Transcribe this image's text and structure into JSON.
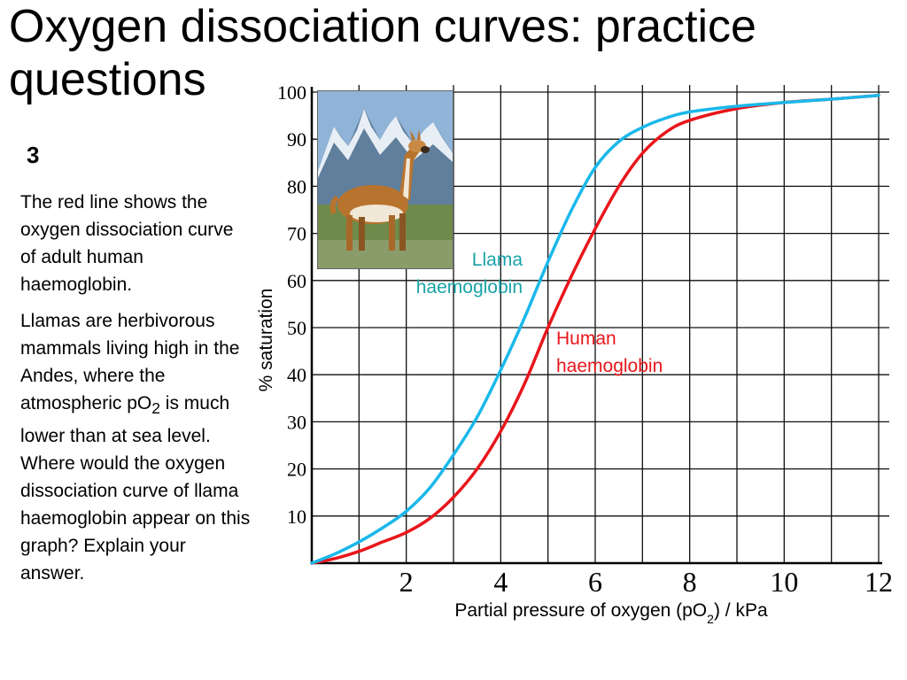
{
  "slide": {
    "title": "Oxygen dissociation curves: practice questions",
    "question_number": "3",
    "paragraph1": "The red line shows the oxygen dissociation curve of adult human haemoglobin.",
    "paragraph2_before": "Llamas are herbivorous mammals living high in the Andes, where the atmospheric pO",
    "paragraph2_sub": "2",
    "paragraph2_after": " is much lower than at sea level. Where would the oxygen dissociation curve of llama haemoglobin appear on this graph? Explain your answer."
  },
  "photo": {
    "subject": "llama standing in front of snowy mountains",
    "colors": {
      "sky": "#8fb4d8",
      "mountain": "#5f7f9c",
      "snow": "#e8eef5",
      "grass": "#6f8a4a",
      "fur": "#b8742e",
      "belly": "#f1e7d6"
    }
  },
  "chart_data": {
    "type": "line",
    "title": "",
    "xlabel_main": "Partial pressure of oxygen (pO",
    "xlabel_sub": "2",
    "xlabel_end": ") / kPa",
    "ylabel": "% saturation",
    "xlim": [
      0,
      12
    ],
    "ylim": [
      0,
      100
    ],
    "x_ticks": [
      2,
      4,
      6,
      8,
      10,
      12
    ],
    "y_ticks": [
      10,
      20,
      30,
      40,
      50,
      60,
      70,
      80,
      90,
      100
    ],
    "grid": true,
    "series": [
      {
        "name": "Llama haemoglobin",
        "label_line1": "Llama",
        "label_line2": "haemoglobin",
        "color": "#1ab8ea",
        "x": [
          0,
          0.5,
          1,
          1.5,
          2,
          2.5,
          3,
          3.5,
          4,
          4.5,
          5,
          5.5,
          6,
          6.5,
          7,
          7.5,
          8,
          9,
          10,
          11,
          12
        ],
        "y": [
          0,
          2,
          4.5,
          7.5,
          11,
          16,
          23,
          31,
          41,
          52,
          64,
          75,
          84,
          89.5,
          92.5,
          94.5,
          95.8,
          97,
          97.8,
          98.5,
          99.3
        ]
      },
      {
        "name": "Human haemoglobin",
        "label_line1": "Human",
        "label_line2": "haemoglobin",
        "color": "#e8161b",
        "x": [
          0,
          0.5,
          1,
          1.5,
          2,
          2.5,
          3,
          3.5,
          4,
          4.5,
          5,
          5.5,
          6,
          6.5,
          7,
          7.5,
          8,
          9,
          10,
          11,
          12
        ],
        "y": [
          0,
          1,
          2.5,
          4.5,
          6.5,
          9.5,
          14,
          20,
          28,
          38,
          50,
          61,
          71,
          80,
          87,
          91.5,
          94,
          96.5,
          97.8,
          98.5,
          99.3
        ]
      }
    ]
  }
}
